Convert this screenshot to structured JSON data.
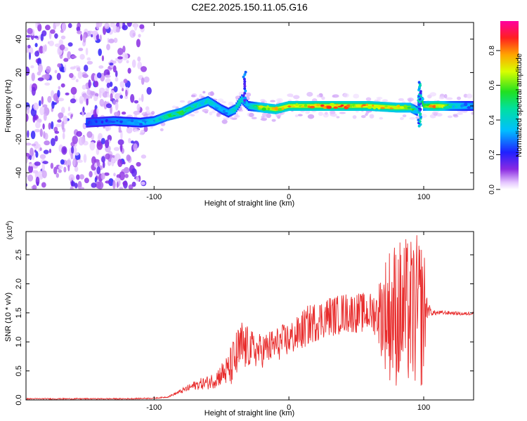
{
  "title": "C2E2.2025.150.11.05.G16",
  "chart_data": [
    {
      "type": "heatmap",
      "title": "C2E2.2025.150.11.05.G16",
      "xlabel": "Height of straight line (km)",
      "ylabel": "Frequency (Hz)",
      "xlim": [
        -195,
        137
      ],
      "ylim": [
        -50,
        50
      ],
      "xticks": [
        -100,
        0,
        100
      ],
      "xtick_labels": [
        "-100",
        "0",
        "100"
      ],
      "yticks": [
        -40,
        -20,
        0,
        20,
        40
      ],
      "ytick_labels": [
        "-40",
        "-20",
        "0",
        "20",
        "40"
      ],
      "colorbar": {
        "label": "Normalized spectral amplitude",
        "range": [
          0,
          0.97
        ],
        "ticks": [
          0.0,
          0.2,
          0.4,
          0.6,
          0.8
        ],
        "tick_labels": [
          "0.0",
          "0.2",
          "0.4",
          "0.6",
          "0.8"
        ],
        "colormap": "rainbow (white-violet-blue-cyan-green-yellow-orange-red-magenta)"
      },
      "ridge": {
        "x": [
          -150,
          -130,
          -110,
          -100,
          -90,
          -80,
          -70,
          -60,
          -50,
          -45,
          -40,
          -35,
          -30,
          -20,
          -10,
          0,
          20,
          40,
          60,
          80,
          90,
          95,
          98,
          100,
          105,
          110,
          120,
          137
        ],
        "freq": [
          -10,
          -9,
          -10,
          -9,
          -6,
          -4,
          0,
          3,
          -2,
          -4,
          -2,
          4,
          0,
          -1,
          -2,
          0,
          0,
          0,
          0,
          -1,
          -1,
          -3,
          5,
          0,
          0,
          0,
          0,
          0
        ],
        "amplitude": [
          0.25,
          0.3,
          0.35,
          0.4,
          0.55,
          0.6,
          0.5,
          0.45,
          0.35,
          0.35,
          0.5,
          0.45,
          0.35,
          0.75,
          0.8,
          0.85,
          0.9,
          0.9,
          0.85,
          0.8,
          0.7,
          0.4,
          0.5,
          0.6,
          0.85,
          0.95,
          0.5,
          0.3
        ]
      },
      "noise_region_km": [
        -195,
        -100
      ]
    },
    {
      "type": "line",
      "xlabel": "Height of straight line (km)",
      "ylabel": "SNR (10 * v/v)",
      "y_multiplier": "(x10^4)",
      "xlim": [
        -195,
        137
      ],
      "ylim": [
        0,
        2.9
      ],
      "xticks": [
        -100,
        0,
        100
      ],
      "xtick_labels": [
        "-100",
        "0",
        "100"
      ],
      "yticks": [
        0.0,
        0.5,
        1.0,
        1.5,
        2.0,
        2.5
      ],
      "ytick_labels": [
        "0.0",
        "0.5",
        "1.0",
        "1.5",
        "2.0",
        "2.5"
      ],
      "color": "#e82c2c",
      "series": [
        {
          "x": [
            -195,
            -180,
            -160,
            -140,
            -120,
            -100,
            -90,
            -85,
            -80,
            -75,
            -70,
            -65,
            -60,
            -55,
            -50,
            -45,
            -40,
            -35,
            -30,
            -25,
            -20,
            -15,
            -10,
            -5,
            0,
            5,
            10,
            15,
            20,
            25,
            30,
            35,
            40,
            45,
            50,
            55,
            60,
            65,
            70,
            75,
            80,
            85,
            90,
            95,
            100,
            102,
            104,
            106,
            110,
            120,
            130,
            137
          ],
          "y": [
            0.02,
            0.02,
            0.02,
            0.02,
            0.02,
            0.03,
            0.05,
            0.1,
            0.15,
            0.2,
            0.25,
            0.28,
            0.3,
            0.35,
            0.45,
            0.5,
            0.7,
            0.9,
            0.9,
            0.85,
            0.85,
            0.9,
            0.95,
            1.0,
            1.05,
            1.1,
            1.2,
            1.3,
            1.35,
            1.4,
            1.45,
            1.45,
            1.5,
            1.5,
            1.5,
            1.5,
            1.5,
            1.5,
            1.5,
            1.5,
            1.5,
            1.5,
            1.5,
            1.5,
            1.5,
            1.6,
            1.55,
            1.5,
            1.5,
            1.5,
            1.48,
            1.5
          ],
          "variability": [
            0.01,
            0.01,
            0.01,
            0.01,
            0.01,
            0.01,
            0.01,
            0.02,
            0.04,
            0.06,
            0.08,
            0.1,
            0.12,
            0.15,
            0.2,
            0.3,
            0.45,
            0.5,
            0.35,
            0.3,
            0.3,
            0.3,
            0.3,
            0.3,
            0.3,
            0.3,
            0.35,
            0.35,
            0.35,
            0.35,
            0.35,
            0.35,
            0.35,
            0.35,
            0.35,
            0.35,
            0.35,
            0.4,
            0.9,
            1.2,
            1.3,
            1.3,
            1.3,
            1.35,
            1.3,
            0.3,
            0.1,
            0.05,
            0.04,
            0.03,
            0.03,
            0.03
          ]
        }
      ]
    }
  ]
}
